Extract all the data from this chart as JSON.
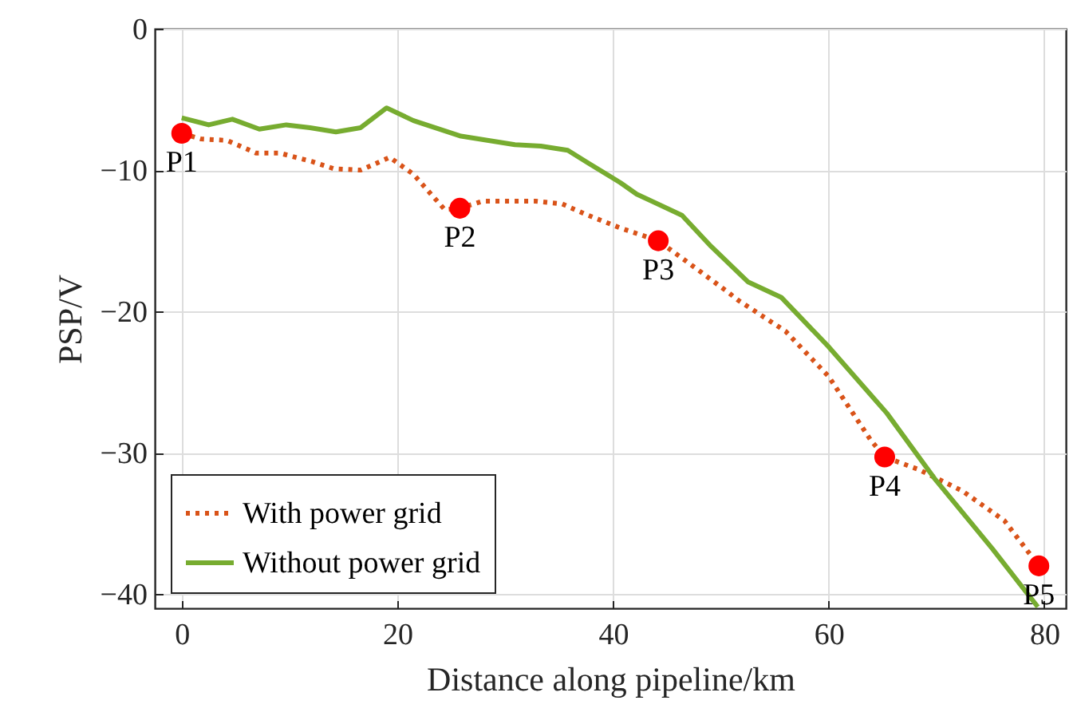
{
  "chart_data": {
    "type": "line",
    "xlabel": "Distance along pipeline/km",
    "ylabel": "PSP/V",
    "xlim": [
      -2.5,
      82
    ],
    "xticks": [
      0,
      20,
      40,
      60,
      80
    ],
    "ylim": [
      -41,
      0
    ],
    "yticks": [
      -40,
      -30,
      -20,
      -10,
      0
    ],
    "grid": true,
    "legend": "bottom left",
    "marker": "none",
    "series": [
      {
        "name": "With power grid",
        "color": "#d95319",
        "line_style": "dotted",
        "x": [
          0,
          1.8,
          4.2,
          6.9,
          9.1,
          12.1,
          14.1,
          16.6,
          19.3,
          21.5,
          24.4,
          25.8,
          27.9,
          32.8,
          35.3,
          37.7,
          40.7,
          44.2,
          47.6,
          50.6,
          51.6,
          56.0,
          60,
          63.9,
          65.2,
          68.4,
          72.4,
          76.3,
          79.5
        ],
        "values": [
          -7.4,
          -7.8,
          -7.9,
          -8.8,
          -8.8,
          -9.4,
          -9.9,
          -10.0,
          -9.1,
          -10.3,
          -12.8,
          -12.7,
          -12.2,
          -12.2,
          -12.4,
          -13.2,
          -14.1,
          -15.0,
          -16.9,
          -18.6,
          -19.2,
          -21.4,
          -24.6,
          -29.1,
          -30.3,
          -31.2,
          -32.7,
          -34.8,
          -38.0
        ]
      },
      {
        "name": "Without power grid",
        "color": "#77ac30",
        "line_style": "solid",
        "x": [
          0,
          2.5,
          4.7,
          7.2,
          9.7,
          11.9,
          14.3,
          16.6,
          19.0,
          21.5,
          25.9,
          30.9,
          33.3,
          35.8,
          37.7,
          40.7,
          42.2,
          46.4,
          49.1,
          52.5,
          55.6,
          60,
          65.4,
          69.8,
          75.2,
          79.4
        ],
        "values": [
          -6.3,
          -6.8,
          -6.4,
          -7.1,
          -6.8,
          -7.0,
          -7.3,
          -7.0,
          -5.6,
          -6.5,
          -7.6,
          -8.2,
          -8.3,
          -8.6,
          -9.5,
          -10.9,
          -11.7,
          -13.2,
          -15.4,
          -17.9,
          -19.0,
          -22.5,
          -27.2,
          -31.8,
          -36.8,
          -40.9
        ]
      },
      {
        "type": "scatter",
        "color": "#ff0000",
        "marker": "circle",
        "x": [
          0,
          25.8,
          44.2,
          65.2,
          79.5
        ],
        "values": [
          -7.4,
          -12.7,
          -15.0,
          -30.3,
          -38.0
        ]
      }
    ],
    "annotations": [
      {
        "text": "P1",
        "x": 0,
        "y": -7.4
      },
      {
        "text": "P2",
        "x": 25.8,
        "y": -12.7
      },
      {
        "text": "P3",
        "x": 44.2,
        "y": -15.0
      },
      {
        "text": "P4",
        "x": 65.2,
        "y": -30.3
      },
      {
        "text": "P5",
        "x": 79.5,
        "y": -38.0
      }
    ]
  }
}
